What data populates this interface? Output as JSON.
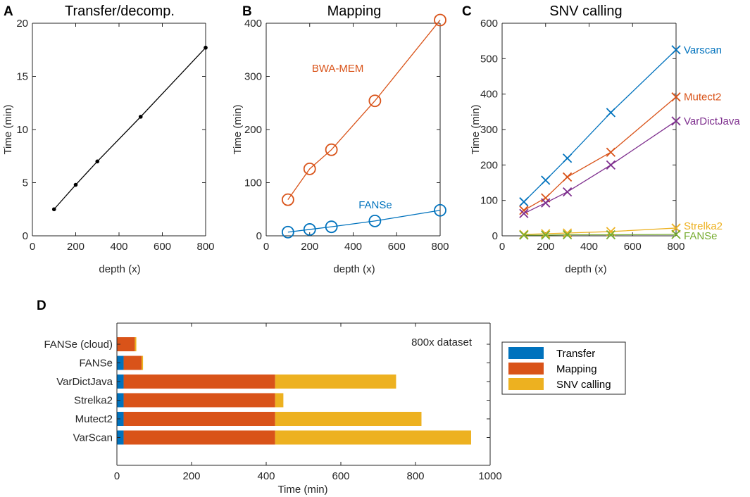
{
  "colors": {
    "blue": "#0072BD",
    "orange": "#D95319",
    "yellow": "#EDB120",
    "purple": "#7E2F8E",
    "green": "#77AC30",
    "black": "#000000",
    "axis": "#262626"
  },
  "chart_data": [
    {
      "type": "line",
      "letter": "A",
      "title": "Transfer/decomp.",
      "xlabel": "depth (x)",
      "ylabel": "Time (min)",
      "xlim": [
        0,
        800
      ],
      "ylim": [
        0,
        20
      ],
      "xticks": [
        0,
        200,
        400,
        600,
        800
      ],
      "yticks": [
        0,
        5,
        10,
        15,
        20
      ],
      "series": [
        {
          "name": "Transfer/decomp.",
          "color": "black",
          "marker": "dot",
          "x": [
            100,
            200,
            300,
            500,
            800
          ],
          "y": [
            2.5,
            4.8,
            7.0,
            11.2,
            17.7
          ]
        }
      ]
    },
    {
      "type": "line",
      "letter": "B",
      "title": "Mapping",
      "xlabel": "depth (x)",
      "ylabel": "Time (min)",
      "xlim": [
        0,
        800
      ],
      "ylim": [
        0,
        400
      ],
      "xticks": [
        0,
        200,
        400,
        600,
        800
      ],
      "yticks": [
        0,
        100,
        200,
        300,
        400
      ],
      "series": [
        {
          "name": "BWA-MEM",
          "color": "orange",
          "marker": "circle",
          "x": [
            100,
            200,
            300,
            500,
            800
          ],
          "y": [
            68,
            126,
            162,
            254,
            406
          ],
          "label_anchor": [
            210,
            315
          ]
        },
        {
          "name": "FANSe",
          "color": "blue",
          "marker": "circle",
          "x": [
            100,
            200,
            300,
            500,
            800
          ],
          "y": [
            7,
            12,
            17,
            28,
            48
          ],
          "label_anchor": [
            425,
            58
          ]
        }
      ]
    },
    {
      "type": "line",
      "letter": "C",
      "title": "SNV calling",
      "xlabel": "depth (x)",
      "ylabel": "Time (min)",
      "xlim": [
        0,
        800
      ],
      "ylim": [
        0,
        600
      ],
      "xticks": [
        0,
        200,
        400,
        600,
        800
      ],
      "yticks": [
        0,
        100,
        200,
        300,
        400,
        500,
        600
      ],
      "series": [
        {
          "name": "Varscan",
          "color": "blue",
          "marker": "x",
          "x": [
            100,
            200,
            300,
            500,
            800
          ],
          "y": [
            96,
            157,
            219,
            348,
            525
          ],
          "label_y": 525
        },
        {
          "name": "Mutect2",
          "color": "orange",
          "marker": "x",
          "x": [
            100,
            200,
            300,
            500,
            800
          ],
          "y": [
            72,
            107,
            166,
            236,
            392
          ],
          "label_y": 392
        },
        {
          "name": "VarDictJava",
          "color": "purple",
          "marker": "x",
          "x": [
            100,
            200,
            300,
            500,
            800
          ],
          "y": [
            63,
            93,
            124,
            200,
            324
          ],
          "label_y": 324
        },
        {
          "name": "Strelka2",
          "color": "yellow",
          "marker": "x",
          "x": [
            100,
            200,
            300,
            500,
            800
          ],
          "y": [
            4,
            6,
            8,
            12,
            22
          ],
          "label_y": 28
        },
        {
          "name": "FANSe",
          "color": "green",
          "marker": "x",
          "x": [
            100,
            200,
            300,
            500,
            800
          ],
          "y": [
            2,
            2,
            3,
            3,
            4
          ],
          "label_y": 0
        }
      ]
    },
    {
      "type": "bar",
      "orientation": "horizontal",
      "stacked": true,
      "letter": "D",
      "annotation": "800x dataset",
      "xlabel": "Time (min)",
      "xlim": [
        0,
        1000
      ],
      "xticks": [
        0,
        200,
        400,
        600,
        800,
        1000
      ],
      "categories": [
        "FANSe (cloud)",
        "FANSe",
        "VarDictJava",
        "Strelka2",
        "Mutect2",
        "VarScan"
      ],
      "series": [
        {
          "name": "Transfer",
          "color": "blue",
          "values": [
            0,
            18,
            18,
            18,
            18,
            18
          ]
        },
        {
          "name": "Mapping",
          "color": "orange",
          "values": [
            48,
            48,
            406,
            406,
            406,
            406
          ]
        },
        {
          "name": "SNV calling",
          "color": "yellow",
          "values": [
            4,
            4,
            324,
            22,
            392,
            525
          ]
        }
      ],
      "legend": [
        "Transfer",
        "Mapping",
        "SNV calling"
      ],
      "legend_position": "outside-right-top"
    }
  ]
}
